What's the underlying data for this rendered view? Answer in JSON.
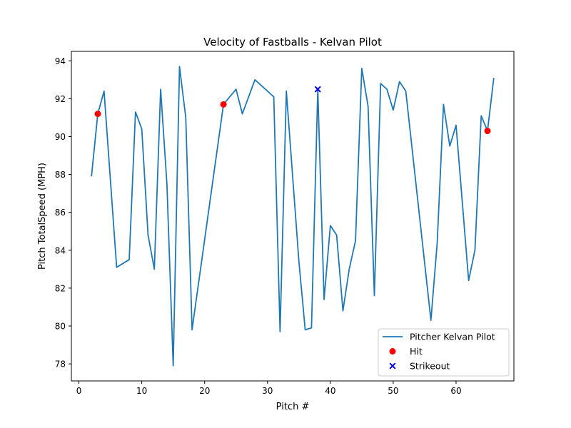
{
  "chart_data": {
    "type": "line",
    "title": "Velocity of Fastballs - Kelvan Pilot",
    "xlabel": "Pitch #",
    "ylabel": "Pitch TotalSpeed (MPH)",
    "xlim": [
      -1.2,
      69.2
    ],
    "ylim": [
      77.1,
      94.5
    ],
    "xticks": [
      0,
      10,
      20,
      30,
      40,
      50,
      60
    ],
    "yticks": [
      78,
      80,
      82,
      84,
      86,
      88,
      90,
      92,
      94
    ],
    "grid": false,
    "legend_position": "bottom-right",
    "series": [
      {
        "name": "Pitcher Kelvan Pilot",
        "kind": "line",
        "color": "#1f77b4",
        "x": [
          2,
          3,
          4,
          6,
          8,
          9,
          10,
          11,
          12,
          13,
          14,
          15,
          16,
          17,
          18,
          23,
          24,
          25,
          26,
          28,
          31,
          32,
          33,
          35,
          36,
          37,
          38,
          39,
          40,
          41,
          42,
          43,
          44,
          45,
          46,
          47,
          48,
          49,
          50,
          51,
          52,
          56,
          57,
          58,
          59,
          60,
          62,
          63,
          64,
          65,
          66
        ],
        "y": [
          87.9,
          91.2,
          92.4,
          83.1,
          83.5,
          91.3,
          90.4,
          84.8,
          83.0,
          92.5,
          87.5,
          77.9,
          93.7,
          91.0,
          79.8,
          91.7,
          92.1,
          92.5,
          91.2,
          93.0,
          92.1,
          79.7,
          92.4,
          83.4,
          79.8,
          79.9,
          92.5,
          81.4,
          85.3,
          84.8,
          80.8,
          83.0,
          84.5,
          93.6,
          91.6,
          81.6,
          92.8,
          92.5,
          91.4,
          92.9,
          92.4,
          80.3,
          84.4,
          91.7,
          89.5,
          90.6,
          82.4,
          84.0,
          91.1,
          90.3,
          93.1
        ]
      },
      {
        "name": "Hit",
        "kind": "scatter",
        "marker": "circle",
        "color": "#ff0000",
        "x": [
          3,
          23,
          65
        ],
        "y": [
          91.2,
          91.7,
          90.3
        ]
      },
      {
        "name": "Strikeout",
        "kind": "scatter",
        "marker": "x",
        "color": "#0000ff",
        "x": [
          38
        ],
        "y": [
          92.5
        ]
      }
    ]
  }
}
